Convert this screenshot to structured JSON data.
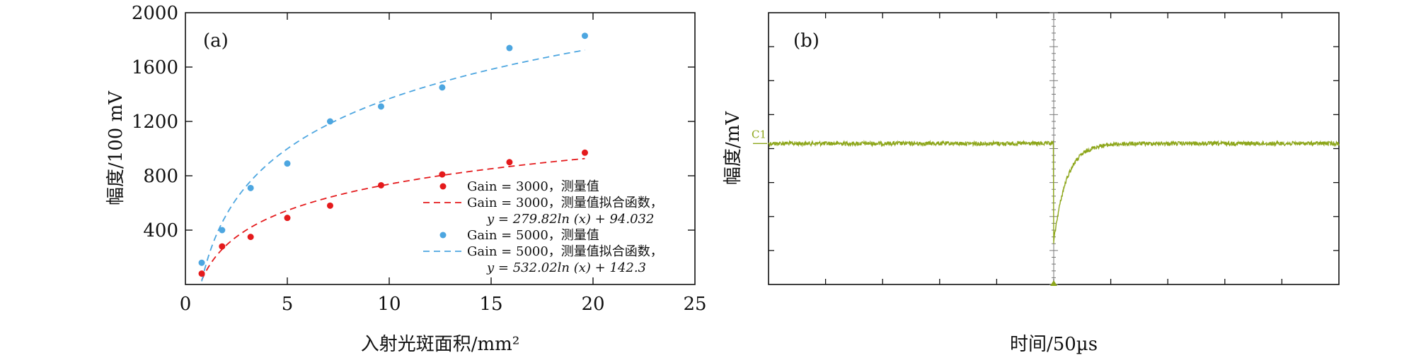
{
  "chart_data": [
    {
      "type": "scatter",
      "panel_label": "(a)",
      "xlabel": "入射光斑面积/mm²",
      "ylabel": "幅度/100 mV",
      "xlim": [
        0,
        25
      ],
      "ylim": [
        0,
        2000
      ],
      "x_ticks": [
        "0",
        "5",
        "10",
        "15",
        "20",
        "25"
      ],
      "y_ticks": [
        "400",
        "800",
        "1200",
        "1600",
        "2000"
      ],
      "legend_position": "lower-right",
      "series": [
        {
          "name": "Gain = 3000，测量值",
          "kind": "points",
          "color": "#e41a1c",
          "x": [
            0.8,
            1.8,
            3.2,
            5.0,
            7.1,
            9.6,
            12.6,
            15.9,
            19.6
          ],
          "y": [
            80,
            280,
            350,
            490,
            580,
            730,
            810,
            900,
            970
          ]
        },
        {
          "name": "Gain = 3000，测量值拟合函数，",
          "formula": "y = 279.82ln (x) + 94.032",
          "kind": "fit",
          "color": "#e41a1c",
          "a": 279.82,
          "b": 94.032,
          "x_range": [
            0.8,
            19.6
          ]
        },
        {
          "name": "Gain = 5000，测量值",
          "kind": "points",
          "color": "#4da6e0",
          "x": [
            0.8,
            1.8,
            3.2,
            5.0,
            7.1,
            9.6,
            12.6,
            15.9,
            19.6
          ],
          "y": [
            160,
            400,
            710,
            890,
            1200,
            1310,
            1450,
            1740,
            1830
          ]
        },
        {
          "name": "Gain = 5000，测量值拟合函数，",
          "formula": "y = 532.02ln (x) + 142.3",
          "kind": "fit",
          "color": "#4da6e0",
          "a": 532.02,
          "b": 142.3,
          "x_range": [
            0.8,
            19.6
          ]
        }
      ]
    },
    {
      "type": "line",
      "panel_label": "(b)",
      "xlabel": "时间/50µs",
      "ylabel": "幅度/mV",
      "channel_marker": "C1",
      "trace_color": "#8da61a",
      "divisions_x": 10,
      "divisions_y": 8,
      "baseline_div_from_top": 3.85,
      "pulse_start_div": 5.0,
      "pulse_depth_div": 2.9,
      "recovery_divs": 0.9,
      "noise_div": 0.06
    }
  ]
}
